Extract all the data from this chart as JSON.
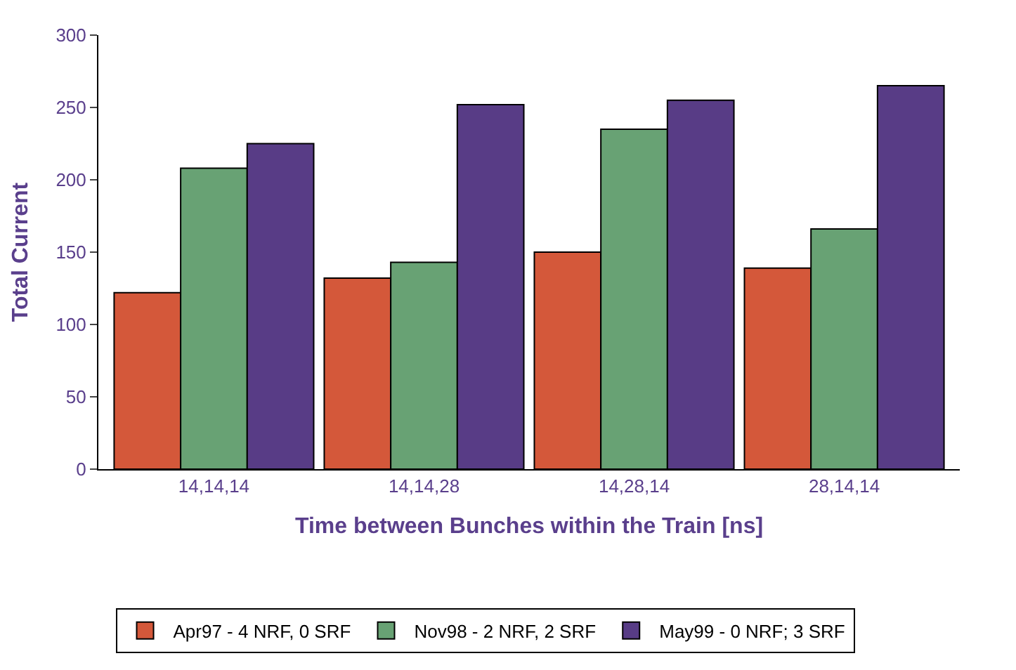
{
  "chart_data": {
    "type": "bar",
    "xlabel": "Time between Bunches within the Train [ns]",
    "ylabel": "Total Current",
    "categories": [
      "14,14,14",
      "14,14,28",
      "14,28,14",
      "28,14,14"
    ],
    "series": [
      {
        "name": "Apr97 - 4 NRF, 0 SRF",
        "color": "#d4583a",
        "values": [
          122,
          132,
          150,
          139
        ]
      },
      {
        "name": "Nov98 - 2 NRF, 2 SRF",
        "color": "#68a274",
        "values": [
          208,
          143,
          235,
          166
        ]
      },
      {
        "name": "May99 - 0 NRF; 3 SRF",
        "color": "#583c86",
        "values": [
          225,
          252,
          255,
          265
        ]
      }
    ],
    "ylim": [
      0,
      300
    ],
    "yticks": [
      0,
      50,
      100,
      150,
      200,
      250,
      300
    ],
    "legend": "bottom"
  }
}
